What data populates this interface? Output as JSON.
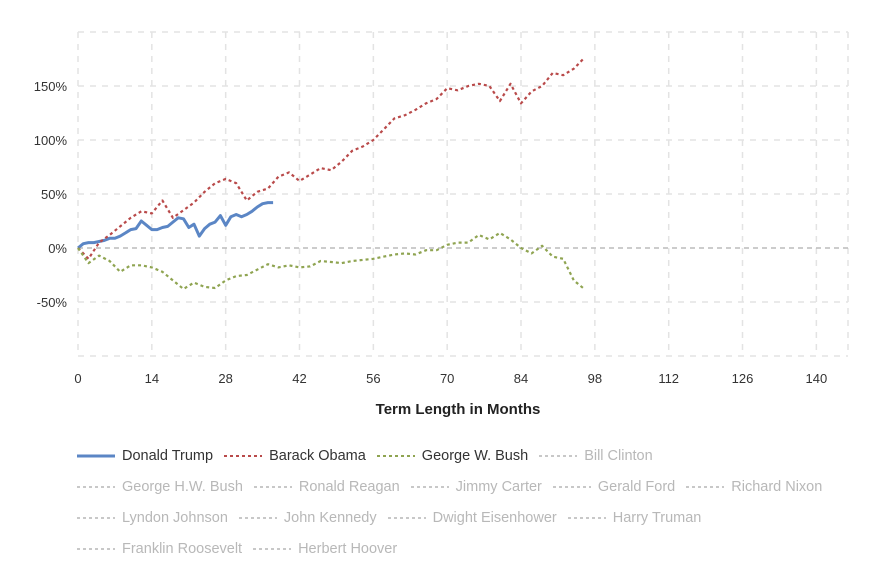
{
  "chart_data": {
    "type": "line",
    "xlabel": "Term Length in Months",
    "ylabel": "",
    "x_ticks": [
      "0",
      "14",
      "28",
      "42",
      "56",
      "70",
      "84",
      "98",
      "112",
      "126",
      "140"
    ],
    "y_ticks": [
      "150%",
      "100%",
      "50%",
      "0%",
      "-50%"
    ],
    "xlim": [
      0,
      146
    ],
    "ylim": [
      -100,
      200
    ],
    "grid": true,
    "legend_position": "bottom",
    "series": [
      {
        "name": "Donald Trump",
        "color": "#5b86c5",
        "style": "solid",
        "visible": true,
        "x": [
          0,
          1,
          2,
          3,
          4,
          5,
          6,
          7,
          8,
          9,
          10,
          11,
          12,
          13,
          14,
          15,
          16,
          17,
          18,
          19,
          20,
          21,
          22,
          23,
          24,
          25,
          26,
          27,
          28,
          29,
          30,
          31,
          32,
          33,
          34,
          35,
          36,
          37
        ],
        "y": [
          0,
          4,
          5,
          5,
          6,
          7,
          9,
          9,
          11,
          14,
          17,
          18,
          25,
          21,
          17,
          17,
          19,
          20,
          24,
          28,
          27,
          19,
          22,
          11,
          18,
          22,
          24,
          30,
          21,
          29,
          31,
          29,
          31,
          34,
          38,
          41,
          42,
          42
        ]
      },
      {
        "name": "Barack Obama",
        "color": "#b94a4a",
        "style": "dotted",
        "visible": true,
        "x": [
          0,
          2,
          4,
          6,
          8,
          10,
          12,
          14,
          16,
          18,
          20,
          22,
          24,
          26,
          28,
          30,
          32,
          34,
          36,
          38,
          40,
          42,
          44,
          46,
          48,
          50,
          52,
          54,
          56,
          58,
          60,
          62,
          64,
          66,
          68,
          70,
          72,
          74,
          76,
          78,
          80,
          82,
          84,
          86,
          88,
          90,
          92,
          94,
          96
        ],
        "y": [
          0,
          -10,
          5,
          12,
          20,
          28,
          34,
          32,
          44,
          28,
          35,
          42,
          52,
          60,
          64,
          60,
          44,
          52,
          55,
          66,
          70,
          62,
          68,
          74,
          72,
          80,
          90,
          94,
          100,
          110,
          120,
          123,
          128,
          134,
          138,
          148,
          146,
          150,
          152,
          150,
          136,
          152,
          134,
          145,
          150,
          162,
          160,
          166,
          176
        ]
      },
      {
        "name": "George W. Bush",
        "color": "#8fa451",
        "style": "dotted",
        "visible": true,
        "x": [
          0,
          2,
          4,
          6,
          8,
          10,
          12,
          14,
          16,
          18,
          20,
          22,
          24,
          26,
          28,
          30,
          32,
          34,
          36,
          38,
          40,
          42,
          44,
          46,
          48,
          50,
          52,
          54,
          56,
          58,
          60,
          62,
          64,
          66,
          68,
          70,
          72,
          74,
          76,
          78,
          80,
          82,
          84,
          86,
          88,
          90,
          92,
          94,
          96
        ],
        "y": [
          0,
          -14,
          -7,
          -12,
          -22,
          -16,
          -16,
          -18,
          -22,
          -30,
          -38,
          -32,
          -36,
          -37,
          -30,
          -26,
          -25,
          -20,
          -15,
          -18,
          -16,
          -18,
          -17,
          -12,
          -13,
          -14,
          -12,
          -11,
          -10,
          -8,
          -6,
          -5,
          -6,
          -2,
          -2,
          3,
          5,
          5,
          12,
          8,
          14,
          8,
          0,
          -5,
          2,
          -8,
          -10,
          -30,
          -38
        ]
      },
      {
        "name": "Bill Clinton",
        "color": "#c8c8c8",
        "style": "dotted",
        "visible": false
      },
      {
        "name": "George H.W. Bush",
        "color": "#c8c8c8",
        "style": "dotted",
        "visible": false
      },
      {
        "name": "Ronald Reagan",
        "color": "#c8c8c8",
        "style": "dotted",
        "visible": false
      },
      {
        "name": "Jimmy Carter",
        "color": "#c8c8c8",
        "style": "dotted",
        "visible": false
      },
      {
        "name": "Gerald Ford",
        "color": "#c8c8c8",
        "style": "dotted",
        "visible": false
      },
      {
        "name": "Richard Nixon",
        "color": "#c8c8c8",
        "style": "dotted",
        "visible": false
      },
      {
        "name": "Lyndon Johnson",
        "color": "#c8c8c8",
        "style": "dotted",
        "visible": false
      },
      {
        "name": "John Kennedy",
        "color": "#c8c8c8",
        "style": "dotted",
        "visible": false
      },
      {
        "name": "Dwight Eisenhower",
        "color": "#c8c8c8",
        "style": "dotted",
        "visible": false
      },
      {
        "name": "Harry Truman",
        "color": "#c8c8c8",
        "style": "dotted",
        "visible": false
      },
      {
        "name": "Franklin Roosevelt",
        "color": "#c8c8c8",
        "style": "dotted",
        "visible": false
      },
      {
        "name": "Herbert Hoover",
        "color": "#c8c8c8",
        "style": "dotted",
        "visible": false
      }
    ]
  }
}
